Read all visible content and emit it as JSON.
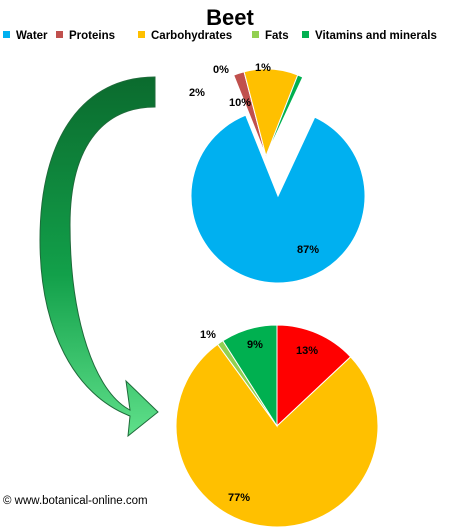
{
  "chart_data": [
    {
      "type": "pie",
      "title": "Beet",
      "categories": [
        "Water",
        "Proteins",
        "Carbohydrates",
        "Fats",
        "Vitamins and minerals"
      ],
      "values": [
        87,
        2,
        10,
        0,
        1
      ],
      "labels": [
        "87%",
        "2%",
        "10%",
        "0%",
        "1%"
      ],
      "colors": [
        "#00B0F0",
        "#C0504D",
        "#FFC000",
        "#92D050",
        "#00B050"
      ],
      "exploded": [
        "Proteins",
        "Carbohydrates",
        "Fats",
        "Vitamins and minerals"
      ],
      "legend": "top"
    },
    {
      "type": "pie",
      "categories": [
        "Proteins",
        "Carbohydrates",
        "Fats",
        "Vitamins and minerals"
      ],
      "values": [
        13,
        77,
        1,
        9
      ],
      "labels": [
        "13%",
        "77%",
        "1%",
        "9%"
      ],
      "colors": [
        "#FF0000",
        "#FFC000",
        "#92D050",
        "#00B050"
      ]
    }
  ],
  "legend_items": [
    {
      "label": "Water",
      "color": "#00B0F0"
    },
    {
      "label": "Proteins",
      "color": "#C0504D"
    },
    {
      "label": "Carbohydrates",
      "color": "#FFC000"
    },
    {
      "label": "Fats",
      "color": "#92D050"
    },
    {
      "label": "Vitamins and minerals",
      "color": "#00B050"
    }
  ],
  "credit": "© www.botanical-online.com"
}
